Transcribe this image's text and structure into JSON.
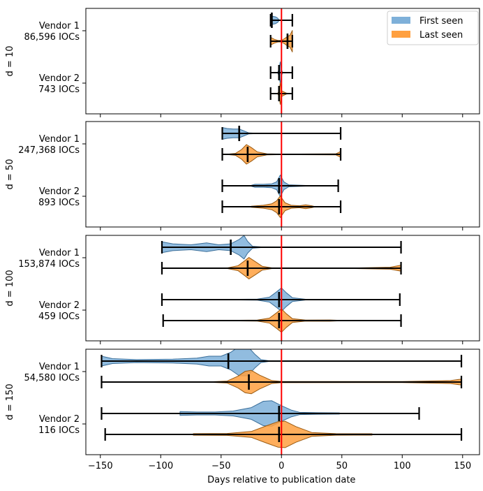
{
  "chart_data": {
    "type": "violin",
    "xlabel": "Days relative to publication date",
    "xlim": [
      -162,
      164
    ],
    "xticks": [
      -150,
      -100,
      -50,
      0,
      50,
      100,
      150
    ],
    "xtick_labels": [
      "−150",
      "−100",
      "−50",
      "0",
      "50",
      "100",
      "150"
    ],
    "reference_line": {
      "x": 0,
      "color": "#ff0000"
    },
    "legend": {
      "placement": "top-right",
      "entries": [
        {
          "label": "First seen",
          "color": "#7eb0d9"
        },
        {
          "label": "Last seen",
          "color": "#ffa040"
        }
      ]
    },
    "panels": [
      {
        "label": "d = 10",
        "vendors": [
          {
            "name": "Vendor 1",
            "count": "86,596 IOCs",
            "first": {
              "min": -9,
              "max": 9,
              "median": -8,
              "density": [
                [
                  -9,
                  0.35
                ],
                [
                  -7,
                  0.4
                ],
                [
                  -5,
                  0.35
                ],
                [
                  -3,
                  0.2
                ],
                [
                  -2,
                  0
                ]
              ]
            },
            "last": {
              "min": -9,
              "max": 9,
              "median": 5,
              "density": [
                [
                  -9,
                  0.4
                ],
                [
                  -6,
                  0.2
                ],
                [
                  -3,
                  0.08
                ],
                [
                  0,
                  0.08
                ],
                [
                  3,
                  0.3
                ],
                [
                  5,
                  0.5
                ],
                [
                  7,
                  0.6
                ],
                [
                  9,
                  1.1
                ]
              ]
            }
          },
          {
            "name": "Vendor 2",
            "count": "743 IOCs",
            "first": {
              "min": -9,
              "max": 9,
              "median": -2,
              "density": [
                [
                  -3,
                  0.05
                ],
                [
                  -2,
                  0.4
                ],
                [
                  -1,
                  1.1
                ],
                [
                  0,
                  0.3
                ],
                [
                  1,
                  0.02
                ]
              ]
            },
            "last": {
              "min": -9,
              "max": 9,
              "median": -2,
              "density": [
                [
                  -3,
                  0.05
                ],
                [
                  -2,
                  0.3
                ],
                [
                  -1,
                  1.1
                ],
                [
                  0,
                  0.3
                ],
                [
                  4,
                  0.05
                ],
                [
                  6,
                  0.02
                ]
              ]
            }
          }
        ]
      },
      {
        "label": "d = 50",
        "vendors": [
          {
            "name": "Vendor 1",
            "count": "247,368 IOCs",
            "first": {
              "min": -49,
              "max": 49,
              "median": -35,
              "density": [
                [
                  -49,
                  0.6
                ],
                [
                  -45,
                  0.5
                ],
                [
                  -40,
                  0.45
                ],
                [
                  -35,
                  0.45
                ],
                [
                  -31,
                  0.25
                ],
                [
                  -27,
                  0.05
                ],
                [
                  -20,
                  0.02
                ],
                [
                  49,
                  0.0
                ]
              ]
            },
            "last": {
              "min": -49,
              "max": 49,
              "median": -28,
              "density": [
                [
                  -45,
                  0.02
                ],
                [
                  -38,
                  0.1
                ],
                [
                  -33,
                  0.5
                ],
                [
                  -29,
                  1.0
                ],
                [
                  -25,
                  0.7
                ],
                [
                  -20,
                  0.25
                ],
                [
                  -12,
                  0.05
                ],
                [
                  0,
                  0.03
                ],
                [
                  45,
                  0.05
                ],
                [
                  49,
                  0.3
                ]
              ]
            }
          },
          {
            "name": "Vendor 2",
            "count": "893 IOCs",
            "first": {
              "min": -49,
              "max": 47,
              "median": -2,
              "density": [
                [
                  -25,
                  0.05
                ],
                [
                  -22,
                  0.15
                ],
                [
                  -15,
                  0.15
                ],
                [
                  -8,
                  0.2
                ],
                [
                  -4,
                  0.4
                ],
                [
                  -1,
                  1.1
                ],
                [
                  2,
                  0.4
                ],
                [
                  6,
                  0.1
                ],
                [
                  20,
                  0.04
                ]
              ]
            },
            "last": {
              "min": -49,
              "max": 49,
              "median": -2,
              "density": [
                [
                  -25,
                  0.05
                ],
                [
                  -15,
                  0.15
                ],
                [
                  -8,
                  0.3
                ],
                [
                  -4,
                  0.6
                ],
                [
                  -1,
                  1.1
                ],
                [
                  3,
                  0.4
                ],
                [
                  8,
                  0.15
                ],
                [
                  15,
                  0.1
                ],
                [
                  20,
                  0.2
                ],
                [
                  25,
                  0.1
                ],
                [
                  28,
                  0
                ]
              ]
            }
          }
        ]
      },
      {
        "label": "d = 100",
        "vendors": [
          {
            "name": "Vendor 1",
            "count": "153,874 IOCs",
            "first": {
              "min": -99,
              "max": 99,
              "median": -42,
              "density": [
                [
                  -99,
                  0.55
                ],
                [
                  -90,
                  0.35
                ],
                [
                  -75,
                  0.25
                ],
                [
                  -62,
                  0.45
                ],
                [
                  -52,
                  0.25
                ],
                [
                  -42,
                  0.35
                ],
                [
                  -35,
                  0.8
                ],
                [
                  -31,
                  1.2
                ],
                [
                  -28,
                  0.6
                ],
                [
                  -24,
                  0.1
                ],
                [
                  -15,
                  0.02
                ],
                [
                  99,
                  0
                ]
              ]
            },
            "last": {
              "min": -99,
              "max": 99,
              "median": -28,
              "density": [
                [
                  -45,
                  0.03
                ],
                [
                  -36,
                  0.25
                ],
                [
                  -30,
                  0.8
                ],
                [
                  -27,
                  1.1
                ],
                [
                  -22,
                  0.7
                ],
                [
                  -16,
                  0.2
                ],
                [
                  -8,
                  0.04
                ],
                [
                  60,
                  0.03
                ],
                [
                  90,
                  0.1
                ],
                [
                  99,
                  0.3
                ]
              ]
            }
          },
          {
            "name": "Vendor 2",
            "count": "459 IOCs",
            "first": {
              "min": -99,
              "max": 98,
              "median": -2,
              "density": [
                [
                  -50,
                  0.02
                ],
                [
                  -20,
                  0.05
                ],
                [
                  -10,
                  0.25
                ],
                [
                  -4,
                  0.8
                ],
                [
                  0,
                  1.2
                ],
                [
                  4,
                  0.7
                ],
                [
                  9,
                  0.2
                ],
                [
                  20,
                  0.04
                ],
                [
                  50,
                  0.02
                ]
              ]
            },
            "last": {
              "min": -98,
              "max": 99,
              "median": -2,
              "density": [
                [
                  -50,
                  0.02
                ],
                [
                  -20,
                  0.05
                ],
                [
                  -10,
                  0.25
                ],
                [
                  -4,
                  0.8
                ],
                [
                  0,
                  1.2
                ],
                [
                  4,
                  0.7
                ],
                [
                  9,
                  0.2
                ],
                [
                  20,
                  0.05
                ],
                [
                  40,
                  0.06
                ],
                [
                  50,
                  0.02
                ]
              ]
            }
          }
        ]
      },
      {
        "label": "d = 150",
        "vendors": [
          {
            "name": "Vendor 1",
            "count": "54,580 IOCs",
            "first": {
              "min": -149,
              "max": 149,
              "median": -44,
              "density": [
                [
                  -149,
                  0.5
                ],
                [
                  -140,
                  0.25
                ],
                [
                  -120,
                  0.15
                ],
                [
                  -90,
                  0.2
                ],
                [
                  -70,
                  0.3
                ],
                [
                  -60,
                  0.5
                ],
                [
                  -50,
                  0.5
                ],
                [
                  -42,
                  0.9
                ],
                [
                  -35,
                  1.5
                ],
                [
                  -28,
                  1.5
                ],
                [
                  -22,
                  0.7
                ],
                [
                  -17,
                  0.15
                ],
                [
                  -10,
                  0.03
                ],
                [
                  149,
                  0
                ]
              ]
            },
            "last": {
              "min": -149,
              "max": 149,
              "median": -27,
              "density": [
                [
                  -60,
                  0.02
                ],
                [
                  -45,
                  0.1
                ],
                [
                  -36,
                  0.6
                ],
                [
                  -30,
                  1.1
                ],
                [
                  -25,
                  1.2
                ],
                [
                  -18,
                  0.7
                ],
                [
                  -8,
                  0.15
                ],
                [
                  0,
                  0.06
                ],
                [
                  100,
                  0.05
                ],
                [
                  140,
                  0.15
                ],
                [
                  149,
                  0.3
                ]
              ]
            }
          },
          {
            "name": "Vendor 2",
            "count": "116 IOCs",
            "first": {
              "min": -149,
              "max": 114,
              "median": -2,
              "density": [
                [
                  -84,
                  0.2
                ],
                [
                  -70,
                  0.15
                ],
                [
                  -55,
                  0.15
                ],
                [
                  -40,
                  0.25
                ],
                [
                  -25,
                  0.6
                ],
                [
                  -15,
                  1.25
                ],
                [
                  -8,
                  1.3
                ],
                [
                  0,
                  0.8
                ],
                [
                  8,
                  0.35
                ],
                [
                  15,
                  0.12
                ],
                [
                  30,
                  0.08
                ],
                [
                  48,
                  0.06
                ]
              ]
            },
            "last": {
              "min": -146,
              "max": 149,
              "median": -2,
              "density": [
                [
                  -73,
                  0.08
                ],
                [
                  -45,
                  0.1
                ],
                [
                  -25,
                  0.3
                ],
                [
                  -12,
                  0.9
                ],
                [
                  -3,
                  1.3
                ],
                [
                  3,
                  1.35
                ],
                [
                  12,
                  0.8
                ],
                [
                  25,
                  0.2
                ],
                [
                  45,
                  0.08
                ],
                [
                  75,
                  0.07
                ]
              ]
            }
          }
        ]
      }
    ]
  }
}
